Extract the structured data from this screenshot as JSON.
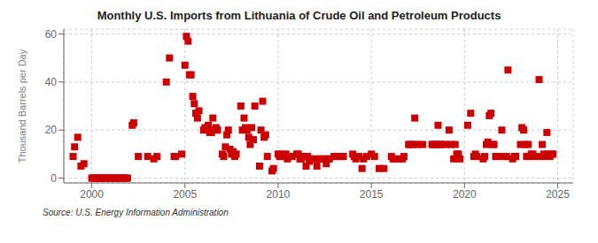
{
  "chart_data": {
    "type": "scatter",
    "title": "Monthly U.S. Imports from Lithuania of Crude Oil and Petroleum Products",
    "ylabel": "Thousand Barrels per Day",
    "annotations": [
      "Source: U.S. Energy Information Administration"
    ],
    "color": "#cc0000",
    "marker": "square",
    "grid": true,
    "xlim": [
      1998.5,
      2025.83
    ],
    "ylim": [
      -2,
      62
    ],
    "xticks": [
      2000,
      2005,
      2010,
      2015,
      2020,
      2025
    ],
    "yticks": [
      0,
      20,
      40,
      60
    ],
    "x": [
      1999.0,
      1999.08,
      1999.25,
      1999.42,
      1999.58,
      2000.0,
      2000.08,
      2000.17,
      2000.25,
      2000.33,
      2000.42,
      2000.5,
      2000.58,
      2000.67,
      2000.75,
      2000.83,
      2000.92,
      2001.0,
      2001.08,
      2001.17,
      2001.25,
      2001.33,
      2001.42,
      2001.5,
      2001.58,
      2001.67,
      2001.75,
      2001.83,
      2001.92,
      2002.17,
      2002.25,
      2002.5,
      2003.0,
      2003.33,
      2003.5,
      2004.0,
      2004.17,
      2004.42,
      2004.5,
      2004.83,
      2005.0,
      2005.08,
      2005.17,
      2005.25,
      2005.33,
      2005.42,
      2005.5,
      2005.58,
      2005.67,
      2005.75,
      2006.0,
      2006.08,
      2006.17,
      2006.25,
      2006.33,
      2006.42,
      2006.5,
      2006.58,
      2006.67,
      2006.75,
      2007.0,
      2007.08,
      2007.17,
      2007.25,
      2007.33,
      2007.42,
      2007.5,
      2007.58,
      2007.67,
      2007.75,
      2008.0,
      2008.08,
      2008.17,
      2008.25,
      2008.33,
      2008.42,
      2008.5,
      2008.58,
      2008.67,
      2008.75,
      2009.0,
      2009.08,
      2009.17,
      2009.25,
      2009.33,
      2009.42,
      2009.67,
      2009.75,
      2010.0,
      2010.08,
      2010.17,
      2010.25,
      2010.33,
      2010.42,
      2010.5,
      2010.67,
      2010.75,
      2011.0,
      2011.08,
      2011.17,
      2011.25,
      2011.33,
      2011.42,
      2011.5,
      2011.58,
      2011.67,
      2011.75,
      2012.0,
      2012.08,
      2012.25,
      2012.33,
      2012.5,
      2012.58,
      2012.67,
      2012.75,
      2013.0,
      2013.17,
      2013.33,
      2013.42,
      2013.5,
      2014.0,
      2014.08,
      2014.17,
      2014.33,
      2014.5,
      2014.58,
      2014.75,
      2015.0,
      2015.17,
      2015.42,
      2015.67,
      2016.08,
      2016.17,
      2016.25,
      2016.5,
      2016.67,
      2016.75,
      2017.0,
      2017.08,
      2017.25,
      2017.33,
      2017.5,
      2017.75,
      2018.25,
      2018.33,
      2018.42,
      2018.5,
      2018.58,
      2018.67,
      2018.75,
      2019.0,
      2019.17,
      2019.25,
      2019.42,
      2019.5,
      2019.58,
      2019.67,
      2019.75,
      2020.17,
      2020.33,
      2020.5,
      2020.58,
      2020.67,
      2021.0,
      2021.08,
      2021.17,
      2021.25,
      2021.33,
      2021.42,
      2021.5,
      2021.58,
      2021.67,
      2021.75,
      2022.0,
      2022.08,
      2022.25,
      2022.33,
      2022.58,
      2022.67,
      2022.75,
      2023.0,
      2023.08,
      2023.17,
      2023.25,
      2023.33,
      2023.42,
      2023.5,
      2023.58,
      2023.67,
      2023.75,
      2024.0,
      2024.08,
      2024.17,
      2024.25,
      2024.33,
      2024.42,
      2024.5,
      2024.58,
      2024.67,
      2024.75
    ],
    "values": [
      9,
      13,
      17,
      5,
      6,
      0,
      0,
      0,
      0,
      0,
      0,
      0,
      0,
      0,
      0,
      0,
      0,
      0,
      0,
      0,
      0,
      0,
      0,
      0,
      0,
      0,
      0,
      0,
      0,
      22,
      23,
      9,
      9,
      8,
      9,
      40,
      50,
      9,
      9,
      10,
      47,
      59,
      57,
      43,
      43,
      34,
      31,
      27,
      25,
      28,
      20,
      21,
      21,
      22,
      19,
      19,
      25,
      20,
      21,
      20,
      10,
      9,
      13,
      18,
      20,
      12,
      10,
      11,
      9,
      10,
      30,
      20,
      25,
      21,
      20,
      17,
      14,
      21,
      16,
      30,
      5,
      20,
      32,
      17,
      18,
      9,
      3,
      4,
      10,
      9,
      10,
      9,
      9,
      10,
      8,
      9,
      9,
      10,
      10,
      8,
      8,
      9,
      9,
      5,
      9,
      7,
      8,
      8,
      5,
      8,
      8,
      8,
      6,
      8,
      8,
      9,
      9,
      9,
      9,
      9,
      10,
      9,
      8,
      9,
      4,
      8,
      9,
      10,
      9,
      4,
      4,
      9,
      8,
      8,
      8,
      8,
      9,
      14,
      14,
      14,
      25,
      14,
      14,
      14,
      14,
      14,
      14,
      22,
      14,
      14,
      14,
      20,
      14,
      8,
      14,
      10,
      10,
      8,
      22,
      27,
      9,
      10,
      9,
      8,
      9,
      14,
      15,
      26,
      27,
      14,
      14,
      9,
      9,
      20,
      9,
      9,
      45,
      8,
      9,
      9,
      14,
      21,
      20,
      14,
      9,
      14,
      9,
      10,
      10,
      9,
      41,
      9,
      14,
      10,
      9,
      19,
      10,
      9,
      10,
      10
    ]
  }
}
